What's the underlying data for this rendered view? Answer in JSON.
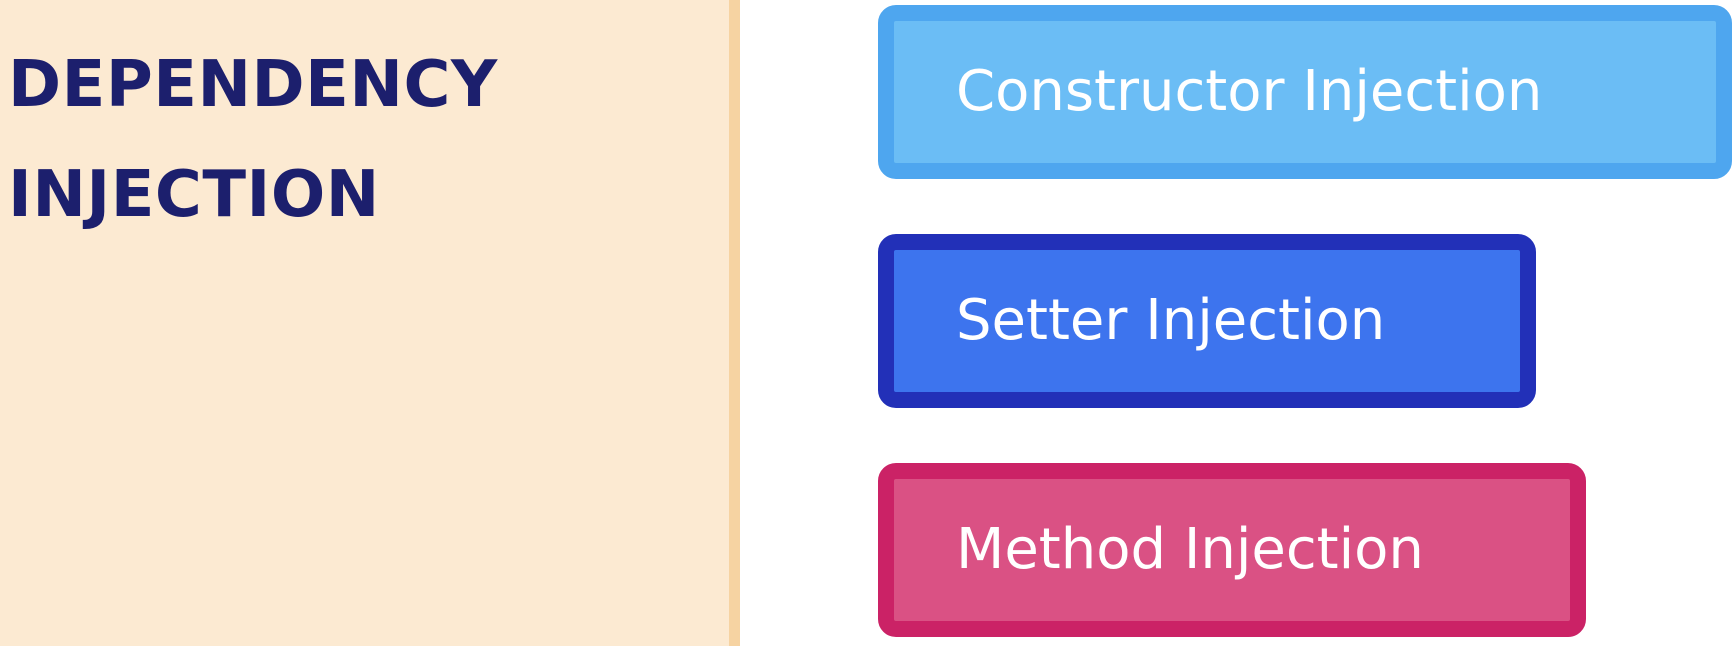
{
  "title": {
    "line1": "DEPENDENCY",
    "line2": "INJECTION"
  },
  "injection_types": [
    {
      "label": "Constructor Injection",
      "fill": "#6bbdf5",
      "border": "#4ea6ef"
    },
    {
      "label": "Setter Injection",
      "fill": "#3d74ee",
      "border": "#2230b8"
    },
    {
      "label": "Method Injection",
      "fill": "#da5184",
      "border": "#cb2266"
    }
  ],
  "colors": {
    "panel_background": "#fcead2",
    "panel_divider": "#f6d3a2",
    "title_text": "#1c1f6d",
    "label_text": "#ffffff"
  }
}
